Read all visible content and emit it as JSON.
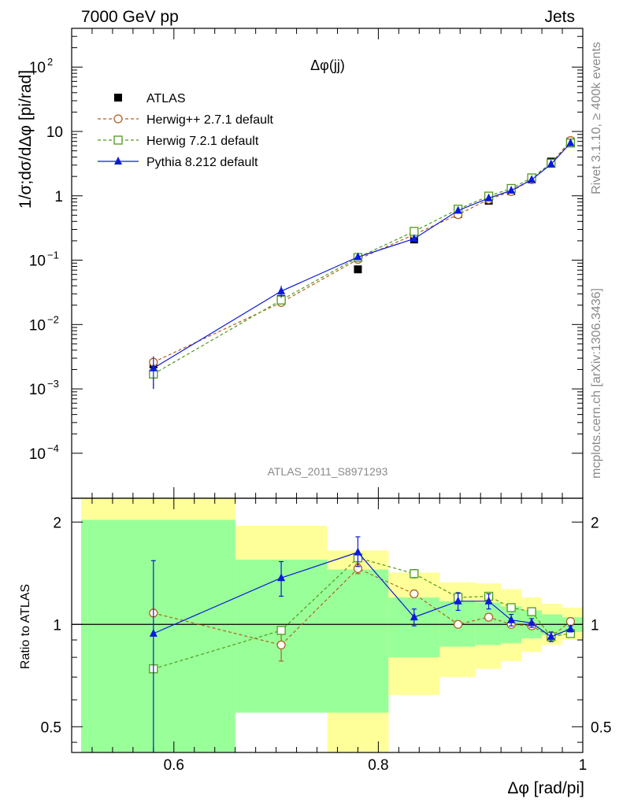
{
  "header": {
    "left": "7000 GeV pp",
    "right": "Jets"
  },
  "side": {
    "rivet": "Rivet 3.1.10, ≥ 400k events",
    "mcplots": "mcplots.cern.ch [arXiv:1306.3436]"
  },
  "chart_data": [
    {
      "type": "line",
      "title": "Δφ(jj)",
      "ylabel": "1/σ;dσ/dΔφ [pi/rad]",
      "xlabel": "Δφ [rad/pi]",
      "yscale": "log",
      "xlim": [
        0.5,
        1.0
      ],
      "ylim": [
        2e-05,
        400
      ],
      "yticks": [
        {
          "v": 0.0001,
          "m": "10",
          "e": "−4"
        },
        {
          "v": 0.001,
          "m": "10",
          "e": "−3"
        },
        {
          "v": 0.01,
          "m": "10",
          "e": "−2"
        },
        {
          "v": 0.1,
          "m": "10",
          "e": "−1"
        },
        {
          "v": 1,
          "m": "1",
          "e": ""
        },
        {
          "v": 10,
          "m": "10",
          "e": ""
        },
        {
          "v": 100,
          "m": "10",
          "e": "2"
        }
      ],
      "watermark": "ATLAS_2011_S8971293",
      "x": [
        0.58,
        0.705,
        0.78,
        0.835,
        0.878,
        0.908,
        0.93,
        0.95,
        0.969,
        0.988
      ],
      "series": [
        {
          "name": "ATLAS",
          "color": "#000000",
          "marker": "square-filled",
          "values": [
            0.0024,
            0.025,
            0.072,
            0.21,
            0.52,
            0.84,
            1.18,
            1.8,
            3.4,
            7.0
          ]
        },
        {
          "name": "Herwig++ 2.7.1 default",
          "color": "#b0621c",
          "marker": "circle-open",
          "dash": true,
          "values": [
            0.0026,
            0.022,
            0.103,
            0.25,
            0.51,
            0.88,
            1.17,
            1.78,
            3.2,
            7.2
          ],
          "err": [
            0.0004,
            0.002,
            0,
            0,
            0,
            0,
            0,
            0,
            0,
            0
          ]
        },
        {
          "name": "Herwig 7.2.1 default",
          "color": "#4f9a1a",
          "marker": "square-open",
          "dash": true,
          "values": [
            0.0017,
            0.024,
            0.11,
            0.28,
            0.62,
            0.99,
            1.3,
            1.9,
            3.2,
            6.6
          ],
          "err": [
            0.0007,
            0.002,
            0,
            0,
            0,
            0,
            0,
            0,
            0,
            0
          ]
        },
        {
          "name": "Pythia 8.212 default",
          "color": "#0a1adc",
          "marker": "triangle-filled",
          "values": [
            0.0021,
            0.033,
            0.112,
            0.215,
            0.59,
            0.92,
            1.21,
            1.78,
            3.1,
            6.6
          ],
          "err": [
            0.0011,
            0.007,
            0.012,
            0,
            0,
            0,
            0,
            0,
            0,
            0
          ]
        }
      ]
    },
    {
      "type": "line",
      "ylabel": "Ratio to ATLAS",
      "yscale": "log",
      "ylim": [
        0.42,
        2.35
      ],
      "xlim": [
        0.5,
        1.0
      ],
      "xticks": [
        0.6,
        0.8,
        1
      ],
      "xtick_labels": [
        "0.6",
        "0.8",
        "1"
      ],
      "yticks": [
        0.5,
        1,
        2
      ],
      "ytick_labels": [
        "0.5",
        "1",
        "2"
      ],
      "bands": [
        {
          "x0": 0.5,
          "x1": 0.66,
          "ylo": 0.42,
          "yhi": 2.35,
          "glo": 0.42,
          "ghi": 2.03
        },
        {
          "x0": 0.66,
          "x1": 0.75,
          "ylo": 0.55,
          "yhi": 1.95,
          "glo": 0.55,
          "ghi": 1.55
        },
        {
          "x0": 0.75,
          "x1": 0.81,
          "ylo": 0.42,
          "yhi": 1.65,
          "glo": 0.55,
          "ghi": 1.45
        },
        {
          "x0": 0.81,
          "x1": 0.86,
          "ylo": 0.62,
          "yhi": 1.42,
          "glo": 0.8,
          "ghi": 1.2
        },
        {
          "x0": 0.86,
          "x1": 0.895,
          "ylo": 0.7,
          "yhi": 1.33,
          "glo": 0.86,
          "ghi": 1.17
        },
        {
          "x0": 0.895,
          "x1": 0.92,
          "ylo": 0.74,
          "yhi": 1.32,
          "glo": 0.87,
          "ghi": 1.16
        },
        {
          "x0": 0.92,
          "x1": 0.94,
          "ylo": 0.78,
          "yhi": 1.27,
          "glo": 0.88,
          "ghi": 1.13
        },
        {
          "x0": 0.94,
          "x1": 0.96,
          "ylo": 0.83,
          "yhi": 1.2,
          "glo": 0.91,
          "ghi": 1.1
        },
        {
          "x0": 0.96,
          "x1": 0.98,
          "ylo": 0.87,
          "yhi": 1.15,
          "glo": 0.93,
          "ghi": 1.07
        },
        {
          "x0": 0.98,
          "x1": 1.0,
          "ylo": 0.9,
          "yhi": 1.12,
          "glo": 0.95,
          "ghi": 1.05
        }
      ],
      "x": [
        0.58,
        0.705,
        0.78,
        0.835,
        0.878,
        0.908,
        0.93,
        0.95,
        0.969,
        0.988
      ],
      "series": [
        {
          "name": "Herwig++ 2.7.1 default",
          "color": "#b0621c",
          "marker": "circle-open",
          "dash": true,
          "values": [
            1.08,
            0.87,
            1.46,
            1.23,
            1.0,
            1.05,
            1.0,
            0.99,
            0.92,
            1.02
          ],
          "elo": [
            0.0,
            0.09,
            0.05,
            0.0,
            0,
            0,
            0,
            0,
            0,
            0
          ],
          "ehi": [
            0.0,
            0.09,
            0.05,
            0.0,
            0,
            0,
            0,
            0,
            0,
            0
          ]
        },
        {
          "name": "Herwig 7.2.1 default",
          "color": "#4f9a1a",
          "marker": "square-open",
          "dash": true,
          "values": [
            0.74,
            0.96,
            1.57,
            1.41,
            1.2,
            1.21,
            1.12,
            1.09,
            0.92,
            0.94
          ],
          "elo": [
            0.0,
            0.0,
            0.0,
            0.04,
            0.03,
            0,
            0,
            0,
            0,
            0
          ],
          "ehi": [
            0.0,
            0.0,
            0.0,
            0.04,
            0.03,
            0,
            0,
            0,
            0,
            0
          ]
        },
        {
          "name": "Pythia 8.212 default",
          "color": "#0a1adc",
          "marker": "triangle-filled",
          "values": [
            0.94,
            1.37,
            1.63,
            1.05,
            1.17,
            1.17,
            1.03,
            1.01,
            0.92,
            0.97
          ],
          "elo": [
            0.55,
            0.16,
            0.15,
            0.06,
            0.07,
            0.06,
            0.04,
            0.03,
            0.03,
            0.02
          ],
          "ehi": [
            0.6,
            0.16,
            0.18,
            0.06,
            0.07,
            0.06,
            0.04,
            0.03,
            0.03,
            0.02
          ]
        }
      ]
    }
  ]
}
